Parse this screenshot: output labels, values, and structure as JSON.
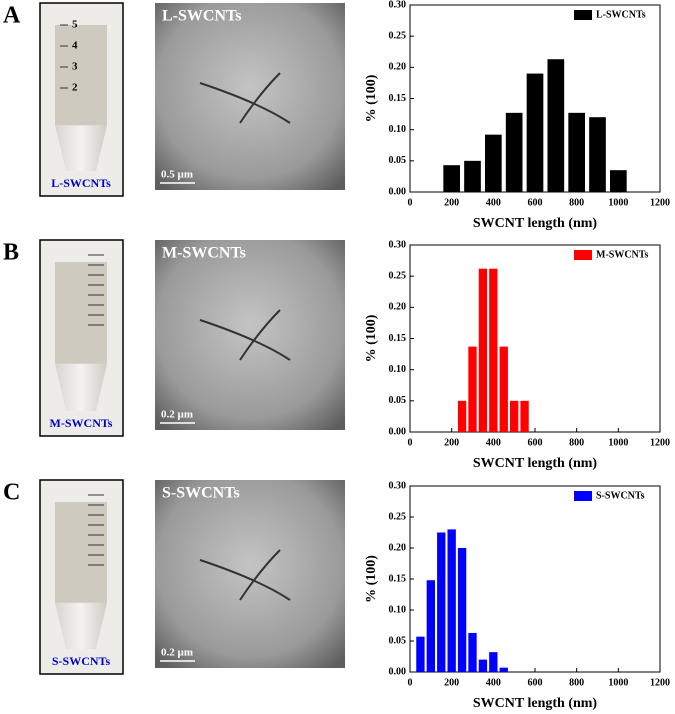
{
  "panels": [
    {
      "letter": "A",
      "tube_label": "L-SWCNTs",
      "tube_marks": [
        "5",
        "4",
        "3",
        "2"
      ],
      "tem_label": "L-SWCNTs",
      "scale_bar": "0.5 µm"
    },
    {
      "letter": "B",
      "tube_label": "M-SWCNTs",
      "tem_label": "M-SWCNTs",
      "scale_bar": "0.2 µm"
    },
    {
      "letter": "C",
      "tube_label": "S-SWCNTs",
      "tem_label": "S-SWCNTs",
      "scale_bar": "0.2 µm"
    }
  ],
  "chart_data": [
    {
      "type": "bar",
      "x": [
        200,
        300,
        400,
        500,
        600,
        700,
        800,
        900,
        1000
      ],
      "series": [
        {
          "name": "L-SWCNTs",
          "color": "#000000",
          "values": [
            0.043,
            0.05,
            0.092,
            0.127,
            0.19,
            0.213,
            0.127,
            0.12,
            0.035
          ]
        }
      ],
      "xlim": [
        0,
        1200
      ],
      "xticks": [
        0,
        200,
        400,
        600,
        800,
        1000,
        1200
      ],
      "ylim": [
        0,
        0.3
      ],
      "yticks": [
        {
          "value": 0,
          "label": "0.00"
        },
        {
          "value": 0.05,
          "label": "0.05"
        },
        {
          "value": 0.1,
          "label": "0.10"
        },
        {
          "value": 0.15,
          "label": "0.15"
        },
        {
          "value": 0.2,
          "label": "0.20"
        },
        {
          "value": 0.25,
          "label": "0.25"
        },
        {
          "value": 0.3,
          "label": "0.30"
        }
      ],
      "xlabel": "SWCNT length (nm)",
      "ylabel": "% (100)",
      "legend": "upper right"
    },
    {
      "type": "bar",
      "x": [
        250,
        300,
        350,
        400,
        450,
        500,
        550
      ],
      "series": [
        {
          "name": "M-SWCNTs",
          "color": "#ff0000",
          "values": [
            0.05,
            0.137,
            0.262,
            0.262,
            0.137,
            0.05,
            0.05
          ]
        }
      ],
      "xlim": [
        0,
        1200
      ],
      "xticks": [
        0,
        200,
        400,
        600,
        800,
        1000,
        1200
      ],
      "ylim": [
        0,
        0.3
      ],
      "yticks": [
        {
          "value": 0,
          "label": "0.00"
        },
        {
          "value": 0.05,
          "label": "0.05"
        },
        {
          "value": 0.1,
          "label": "0.10"
        },
        {
          "value": 0.15,
          "label": "0.15"
        },
        {
          "value": 0.2,
          "label": "0.20"
        },
        {
          "value": 0.25,
          "label": "0.25"
        },
        {
          "value": 0.3,
          "label": "0.30"
        }
      ],
      "xlabel": "SWCNT length (nm)",
      "ylabel": "% (100)",
      "legend": "upper right"
    },
    {
      "type": "bar",
      "x": [
        50,
        100,
        150,
        200,
        250,
        300,
        350,
        400,
        450
      ],
      "series": [
        {
          "name": "S-SWCNTs",
          "color": "#0000ff",
          "values": [
            0.057,
            0.148,
            0.225,
            0.23,
            0.2,
            0.063,
            0.02,
            0.032,
            0.007
          ]
        }
      ],
      "xlim": [
        0,
        1200
      ],
      "xticks": [
        0,
        200,
        400,
        600,
        800,
        1000,
        1200
      ],
      "ylim": [
        0,
        0.3
      ],
      "yticks": [
        {
          "value": 0,
          "label": "0.00"
        },
        {
          "value": 0.05,
          "label": "0.05"
        },
        {
          "value": 0.1,
          "label": "0.10"
        },
        {
          "value": 0.15,
          "label": "0.15"
        },
        {
          "value": 0.2,
          "label": "0.20"
        },
        {
          "value": 0.25,
          "label": "0.25"
        },
        {
          "value": 0.3,
          "label": "0.30"
        }
      ],
      "xlabel": "SWCNT length (nm)",
      "ylabel": "% (100)",
      "legend": "upper right"
    }
  ]
}
